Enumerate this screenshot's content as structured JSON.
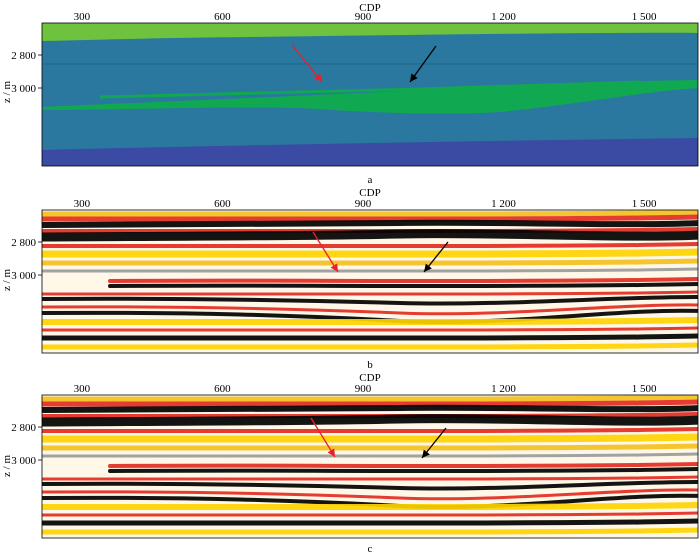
{
  "x_axis_title": "CDP",
  "y_axis_title": "z / m",
  "x_ticks": [
    {
      "value": 300,
      "label": "300"
    },
    {
      "value": 600,
      "label": "600"
    },
    {
      "value": 900,
      "label": "900"
    },
    {
      "value": 1200,
      "label": "1 200"
    },
    {
      "value": 1500,
      "label": "1 500"
    }
  ],
  "y_ticks": [
    {
      "value": 2800,
      "label": "2 800"
    },
    {
      "value": 3000,
      "label": "3 000"
    }
  ],
  "x_range": [
    215,
    1615
  ],
  "panels": [
    {
      "id": "a",
      "label": "a",
      "type": "velocity-model"
    },
    {
      "id": "b",
      "label": "b",
      "type": "seismic-section"
    },
    {
      "id": "c",
      "label": "c",
      "type": "seismic-section"
    }
  ],
  "arrow_colors": {
    "red": "#e8202a",
    "black": "#000000"
  },
  "model_colors": {
    "top_layer": "#6ec23e",
    "matrix": "#2a78a0",
    "lens": "#10a850",
    "base": "#3b4aa3"
  },
  "seismic_palette": [
    "#000000",
    "#e32b22",
    "#ffd200",
    "#ffffff",
    "#9a9a9a"
  ]
}
